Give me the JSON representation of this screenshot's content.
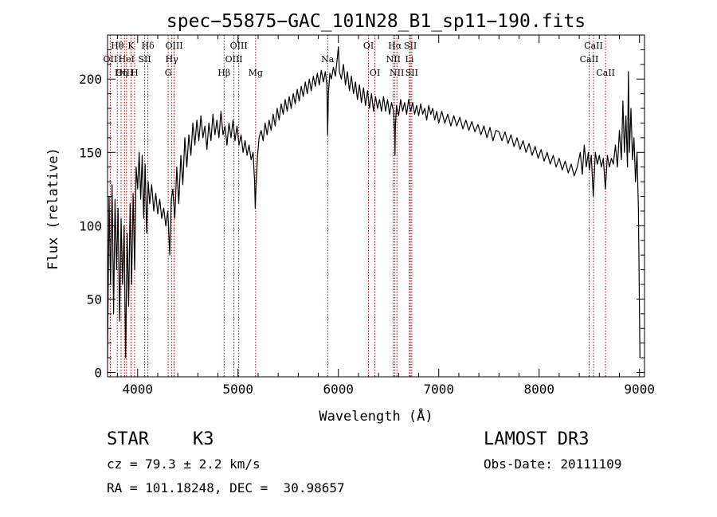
{
  "chart_data": {
    "type": "line",
    "title": "spec−55875−GAC_101N28_B1_sp11−190.fits",
    "xlabel": "Wavelength (Å)",
    "ylabel": "Flux (relative)",
    "xlim": [
      3700,
      9050
    ],
    "ylim": [
      -3,
      230
    ],
    "xticks": [
      4000,
      5000,
      6000,
      7000,
      8000,
      9000
    ],
    "yticks": [
      0,
      50,
      100,
      150,
      200
    ],
    "x_minor_step": 200,
    "y_minor_step": 10,
    "grid": false,
    "series": [
      {
        "name": "flux",
        "color": "#000000",
        "points": [
          [
            3700,
            10
          ],
          [
            3715,
            120
          ],
          [
            3730,
            60
          ],
          [
            3745,
            128
          ],
          [
            3760,
            40
          ],
          [
            3775,
            118
          ],
          [
            3790,
            70
          ],
          [
            3805,
            112
          ],
          [
            3820,
            35
          ],
          [
            3835,
            105
          ],
          [
            3850,
            60
          ],
          [
            3865,
            100
          ],
          [
            3880,
            10
          ],
          [
            3895,
            95
          ],
          [
            3910,
            45
          ],
          [
            3925,
            115
          ],
          [
            3940,
            60
          ],
          [
            3955,
            122
          ],
          [
            3970,
            70
          ],
          [
            3985,
            140
          ],
          [
            4000,
            125
          ],
          [
            4015,
            150
          ],
          [
            4030,
            118
          ],
          [
            4045,
            148
          ],
          [
            4060,
            105
          ],
          [
            4075,
            142
          ],
          [
            4090,
            95
          ],
          [
            4105,
            130
          ],
          [
            4120,
            115
          ],
          [
            4140,
            128
          ],
          [
            4160,
            110
          ],
          [
            4180,
            122
          ],
          [
            4200,
            108
          ],
          [
            4220,
            118
          ],
          [
            4240,
            105
          ],
          [
            4260,
            112
          ],
          [
            4280,
            100
          ],
          [
            4300,
            110
          ],
          [
            4320,
            80
          ],
          [
            4335,
            118
          ],
          [
            4350,
            125
          ],
          [
            4370,
            105
          ],
          [
            4390,
            140
          ],
          [
            4410,
            115
          ],
          [
            4430,
            148
          ],
          [
            4450,
            128
          ],
          [
            4470,
            160
          ],
          [
            4490,
            140
          ],
          [
            4510,
            162
          ],
          [
            4530,
            148
          ],
          [
            4550,
            170
          ],
          [
            4570,
            155
          ],
          [
            4590,
            172
          ],
          [
            4610,
            158
          ],
          [
            4630,
            175
          ],
          [
            4650,
            160
          ],
          [
            4670,
            168
          ],
          [
            4690,
            152
          ],
          [
            4710,
            170
          ],
          [
            4730,
            158
          ],
          [
            4750,
            176
          ],
          [
            4770,
            162
          ],
          [
            4790,
            172
          ],
          [
            4810,
            160
          ],
          [
            4830,
            178
          ],
          [
            4850,
            162
          ],
          [
            4870,
            168
          ],
          [
            4890,
            155
          ],
          [
            4910,
            170
          ],
          [
            4930,
            160
          ],
          [
            4950,
            172
          ],
          [
            4970,
            158
          ],
          [
            4990,
            168
          ],
          [
            5010,
            155
          ],
          [
            5030,
            162
          ],
          [
            5050,
            150
          ],
          [
            5070,
            158
          ],
          [
            5090,
            148
          ],
          [
            5110,
            155
          ],
          [
            5130,
            145
          ],
          [
            5150,
            150
          ],
          [
            5165,
            130
          ],
          [
            5172,
            112
          ],
          [
            5180,
            128
          ],
          [
            5195,
            148
          ],
          [
            5210,
            160
          ],
          [
            5230,
            165
          ],
          [
            5250,
            158
          ],
          [
            5270,
            170
          ],
          [
            5290,
            162
          ],
          [
            5310,
            172
          ],
          [
            5330,
            165
          ],
          [
            5350,
            176
          ],
          [
            5370,
            168
          ],
          [
            5390,
            180
          ],
          [
            5410,
            172
          ],
          [
            5430,
            183
          ],
          [
            5450,
            176
          ],
          [
            5470,
            186
          ],
          [
            5490,
            178
          ],
          [
            5510,
            188
          ],
          [
            5530,
            180
          ],
          [
            5550,
            190
          ],
          [
            5570,
            183
          ],
          [
            5590,
            193
          ],
          [
            5610,
            185
          ],
          [
            5630,
            195
          ],
          [
            5650,
            188
          ],
          [
            5670,
            198
          ],
          [
            5690,
            190
          ],
          [
            5710,
            200
          ],
          [
            5730,
            192
          ],
          [
            5750,
            202
          ],
          [
            5770,
            195
          ],
          [
            5790,
            204
          ],
          [
            5810,
            196
          ],
          [
            5830,
            206
          ],
          [
            5850,
            198
          ],
          [
            5870,
            205
          ],
          [
            5885,
            196
          ],
          [
            5893,
            162
          ],
          [
            5900,
            190
          ],
          [
            5915,
            204
          ],
          [
            5930,
            200
          ],
          [
            5950,
            208
          ],
          [
            5970,
            202
          ],
          [
            5990,
            215
          ],
          [
            6000,
            222
          ],
          [
            6010,
            205
          ],
          [
            6030,
            200
          ],
          [
            6050,
            210
          ],
          [
            6070,
            196
          ],
          [
            6090,
            205
          ],
          [
            6110,
            192
          ],
          [
            6130,
            202
          ],
          [
            6150,
            190
          ],
          [
            6170,
            198
          ],
          [
            6190,
            186
          ],
          [
            6210,
            196
          ],
          [
            6230,
            184
          ],
          [
            6250,
            194
          ],
          [
            6270,
            182
          ],
          [
            6290,
            192
          ],
          [
            6310,
            180
          ],
          [
            6330,
            190
          ],
          [
            6350,
            178
          ],
          [
            6370,
            188
          ],
          [
            6390,
            180
          ],
          [
            6410,
            186
          ],
          [
            6430,
            178
          ],
          [
            6450,
            188
          ],
          [
            6470,
            178
          ],
          [
            6490,
            186
          ],
          [
            6510,
            176
          ],
          [
            6530,
            184
          ],
          [
            6550,
            178
          ],
          [
            6560,
            165
          ],
          [
            6564,
            148
          ],
          [
            6568,
            168
          ],
          [
            6580,
            182
          ],
          [
            6600,
            175
          ],
          [
            6620,
            186
          ],
          [
            6640,
            178
          ],
          [
            6660,
            184
          ],
          [
            6680,
            176
          ],
          [
            6700,
            186
          ],
          [
            6720,
            178
          ],
          [
            6740,
            184
          ],
          [
            6760,
            176
          ],
          [
            6780,
            182
          ],
          [
            6800,
            175
          ],
          [
            6820,
            183
          ],
          [
            6840,
            176
          ],
          [
            6860,
            180
          ],
          [
            6880,
            172
          ],
          [
            6900,
            182
          ],
          [
            6920,
            176
          ],
          [
            6940,
            180
          ],
          [
            6960,
            172
          ],
          [
            6980,
            178
          ],
          [
            7000,
            170
          ],
          [
            7030,
            178
          ],
          [
            7060,
            170
          ],
          [
            7090,
            176
          ],
          [
            7120,
            168
          ],
          [
            7150,
            175
          ],
          [
            7180,
            168
          ],
          [
            7210,
            174
          ],
          [
            7240,
            166
          ],
          [
            7270,
            172
          ],
          [
            7300,
            165
          ],
          [
            7330,
            171
          ],
          [
            7360,
            164
          ],
          [
            7390,
            169
          ],
          [
            7420,
            162
          ],
          [
            7450,
            168
          ],
          [
            7480,
            160
          ],
          [
            7510,
            167
          ],
          [
            7540,
            158
          ],
          [
            7570,
            165
          ],
          [
            7600,
            164
          ],
          [
            7630,
            158
          ],
          [
            7660,
            164
          ],
          [
            7690,
            156
          ],
          [
            7720,
            162
          ],
          [
            7750,
            154
          ],
          [
            7780,
            160
          ],
          [
            7810,
            152
          ],
          [
            7840,
            158
          ],
          [
            7870,
            150
          ],
          [
            7900,
            156
          ],
          [
            7930,
            148
          ],
          [
            7960,
            154
          ],
          [
            7990,
            146
          ],
          [
            8020,
            152
          ],
          [
            8050,
            144
          ],
          [
            8080,
            150
          ],
          [
            8110,
            142
          ],
          [
            8140,
            148
          ],
          [
            8170,
            140
          ],
          [
            8200,
            146
          ],
          [
            8230,
            138
          ],
          [
            8260,
            144
          ],
          [
            8290,
            136
          ],
          [
            8320,
            142
          ],
          [
            8350,
            134
          ],
          [
            8380,
            140
          ],
          [
            8410,
            150
          ],
          [
            8430,
            135
          ],
          [
            8450,
            155
          ],
          [
            8470,
            140
          ],
          [
            8490,
            150
          ],
          [
            8500,
            138
          ],
          [
            8520,
            148
          ],
          [
            8540,
            120
          ],
          [
            8560,
            150
          ],
          [
            8580,
            142
          ],
          [
            8600,
            148
          ],
          [
            8620,
            140
          ],
          [
            8640,
            146
          ],
          [
            8660,
            125
          ],
          [
            8680,
            148
          ],
          [
            8700,
            140
          ],
          [
            8720,
            146
          ],
          [
            8740,
            142
          ],
          [
            8760,
            155
          ],
          [
            8780,
            140
          ],
          [
            8800,
            165
          ],
          [
            8820,
            145
          ],
          [
            8835,
            185
          ],
          [
            8850,
            150
          ],
          [
            8865,
            175
          ],
          [
            8880,
            140
          ],
          [
            8890,
            205
          ],
          [
            8900,
            150
          ],
          [
            8915,
            180
          ],
          [
            8930,
            145
          ],
          [
            8945,
            160
          ],
          [
            8960,
            130
          ],
          [
            8975,
            150
          ],
          [
            8990,
            110
          ],
          [
            9000,
            40
          ],
          [
            9005,
            10
          ]
        ]
      }
    ],
    "line_markers": [
      {
        "label": "Hθ",
        "x": 3797,
        "row": 0
      },
      {
        "label": "K",
        "x": 3934,
        "row": 0
      },
      {
        "label": "Hδ",
        "x": 4102,
        "row": 0
      },
      {
        "label": "OIII",
        "x": 4363,
        "row": 0
      },
      {
        "label": "OIII",
        "x": 5007,
        "row": 0
      },
      {
        "label": "OI",
        "x": 6300,
        "row": 0
      },
      {
        "label": "Hα",
        "x": 6563,
        "row": 0
      },
      {
        "label": "SII",
        "x": 6717,
        "row": 0
      },
      {
        "label": "CaII",
        "x": 8542,
        "row": 0
      },
      {
        "label": "OII",
        "x": 3727,
        "row": 1
      },
      {
        "label": "HeI",
        "x": 3889,
        "row": 1
      },
      {
        "label": "SII",
        "x": 4070,
        "row": 1
      },
      {
        "label": "Hγ",
        "x": 4340,
        "row": 1
      },
      {
        "label": "OIII",
        "x": 4959,
        "row": 1
      },
      {
        "label": "Na",
        "x": 5893,
        "row": 1
      },
      {
        "label": "NII",
        "x": 6548,
        "row": 1
      },
      {
        "label": "Li",
        "x": 6708,
        "row": 1
      },
      {
        "label": "CaII",
        "x": 8498,
        "row": 1
      },
      {
        "label": "OIII",
        "x": 3869,
        "row": 2
      },
      {
        "label": "Hη",
        "x": 3835,
        "row": 2
      },
      {
        "label": "H",
        "x": 3969,
        "row": 2
      },
      {
        "label": "G",
        "x": 4304,
        "row": 2
      },
      {
        "label": "Hβ",
        "x": 4861,
        "row": 2
      },
      {
        "label": "Mg",
        "x": 5175,
        "row": 2
      },
      {
        "label": "OI",
        "x": 6364,
        "row": 2
      },
      {
        "label": "NII",
        "x": 6583,
        "row": 2
      },
      {
        "label": "SII",
        "x": 6731,
        "row": 2
      },
      {
        "label": "CaII",
        "x": 8662,
        "row": 2
      }
    ]
  },
  "info": {
    "object_class": "STAR",
    "subclass": "K3",
    "velocity": "cz = 79.3 ± 2.2 km/s",
    "coords": "RA = 101.18248, DEC =  30.98657",
    "survey": "LAMOST DR3",
    "obs_date": "Obs-Date: 20111109"
  }
}
